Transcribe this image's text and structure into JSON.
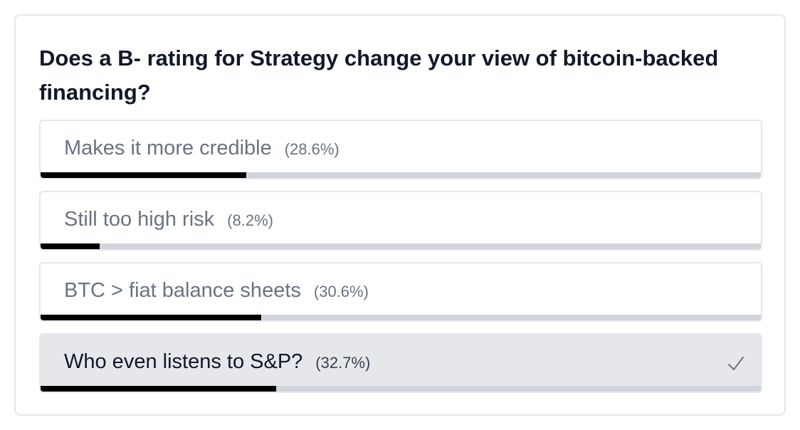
{
  "poll": {
    "question": "Does a B- rating for Strategy change your view of bitcoin-backed financing?",
    "options": [
      {
        "label": "Makes it more credible",
        "percent_text": "(28.6%)",
        "fraction": 0.286,
        "selected": false
      },
      {
        "label": "Still too high risk",
        "percent_text": "(8.2%)",
        "fraction": 0.082,
        "selected": false
      },
      {
        "label": "BTC > fiat balance sheets",
        "percent_text": "(30.6%)",
        "fraction": 0.306,
        "selected": false
      },
      {
        "label": "Who even listens to S&P?",
        "percent_text": "(32.7%)",
        "fraction": 0.327,
        "selected": true
      }
    ],
    "selected_icon": "checkmark-icon"
  },
  "colors": {
    "bar_fill": "#000000",
    "bar_track": "#d1d5db",
    "selected_bg": "#e5e7eb",
    "border": "#e5e7eb"
  }
}
